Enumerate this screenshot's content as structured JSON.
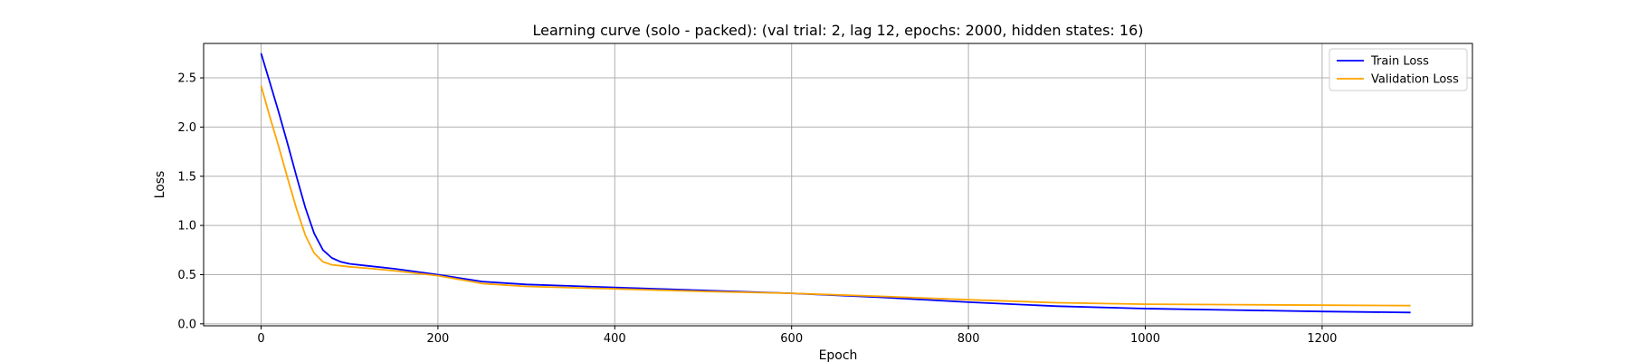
{
  "chart_data": {
    "type": "line",
    "title": "Learning curve (solo - packed): (val trial: 2, lag 12, epochs: 2000, hidden states: 16)",
    "xlabel": "Epoch",
    "ylabel": "Loss",
    "xlim": [
      -65,
      1370
    ],
    "ylim": [
      -0.02,
      2.85
    ],
    "xticks": [
      0,
      200,
      400,
      600,
      800,
      1000,
      1200
    ],
    "yticks": [
      0.0,
      0.5,
      1.0,
      1.5,
      2.0,
      2.5
    ],
    "xtick_labels": [
      "0",
      "200",
      "400",
      "600",
      "800",
      "1000",
      "1200"
    ],
    "ytick_labels": [
      "0.0",
      "0.5",
      "1.0",
      "1.5",
      "2.0",
      "2.5"
    ],
    "grid": true,
    "legend_position": "top-right",
    "series": [
      {
        "name": "Train Loss",
        "color": "#0000ff",
        "x": [
          0,
          10,
          20,
          30,
          40,
          50,
          60,
          70,
          80,
          90,
          100,
          120,
          150,
          200,
          250,
          300,
          400,
          500,
          600,
          700,
          800,
          900,
          1000,
          1100,
          1200,
          1300
        ],
        "y": [
          2.75,
          2.45,
          2.15,
          1.83,
          1.5,
          1.18,
          0.92,
          0.75,
          0.67,
          0.63,
          0.61,
          0.59,
          0.56,
          0.5,
          0.43,
          0.4,
          0.37,
          0.34,
          0.31,
          0.27,
          0.22,
          0.18,
          0.155,
          0.14,
          0.125,
          0.115
        ]
      },
      {
        "name": "Validation Loss",
        "color": "#ffa500",
        "x": [
          0,
          10,
          20,
          30,
          40,
          50,
          60,
          70,
          80,
          90,
          100,
          120,
          150,
          200,
          250,
          300,
          400,
          500,
          600,
          700,
          800,
          900,
          1000,
          1100,
          1200,
          1300
        ],
        "y": [
          2.42,
          2.1,
          1.8,
          1.48,
          1.17,
          0.9,
          0.72,
          0.63,
          0.6,
          0.59,
          0.58,
          0.565,
          0.54,
          0.49,
          0.41,
          0.38,
          0.355,
          0.33,
          0.31,
          0.28,
          0.245,
          0.215,
          0.2,
          0.195,
          0.19,
          0.185
        ]
      }
    ]
  }
}
